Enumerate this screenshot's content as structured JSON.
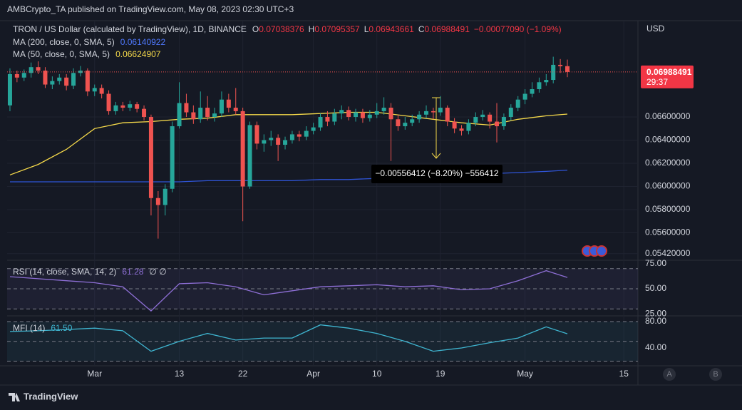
{
  "header": {
    "publisher": "AMBCrypto_TA published on TradingView.com, May 08, 2023 02:30 UTC+3"
  },
  "chart_data": [
    {
      "type": "candlestick",
      "title": "TRON / US Dollar (calculated by TradingView), 1D, BINANCE",
      "ohlc_labels": [
        "O",
        "H",
        "L",
        "C"
      ],
      "change": "−0.00077090 (−1.09%)",
      "currency": "USD",
      "countdown": "29:37",
      "annotation": "−0.00556412 (−8.20%) −556412",
      "up_color": "#26a69a",
      "down_color": "#ef5350",
      "candles": [
        [
          0.067,
          0.0702,
          0.0665,
          0.0697
        ],
        [
          0.0697,
          0.07,
          0.069,
          0.0694
        ],
        [
          0.0694,
          0.0701,
          0.0691,
          0.0698
        ],
        [
          0.0698,
          0.0707,
          0.0694,
          0.0703
        ],
        [
          0.0703,
          0.0708,
          0.0697,
          0.07
        ],
        [
          0.07,
          0.0703,
          0.0685,
          0.0688
        ],
        [
          0.0688,
          0.0695,
          0.0684,
          0.0691
        ],
        [
          0.0691,
          0.0697,
          0.0688,
          0.0694
        ],
        [
          0.0694,
          0.0697,
          0.0683,
          0.0687
        ],
        [
          0.0687,
          0.0702,
          0.0684,
          0.0698
        ],
        [
          0.0698,
          0.0704,
          0.0695,
          0.07
        ],
        [
          0.07,
          0.0702,
          0.0678,
          0.0682
        ],
        [
          0.0682,
          0.0688,
          0.0678,
          0.0685
        ],
        [
          0.0685,
          0.0688,
          0.0676,
          0.068
        ],
        [
          0.068,
          0.0683,
          0.0662,
          0.0665
        ],
        [
          0.0665,
          0.0673,
          0.0662,
          0.067
        ],
        [
          0.067,
          0.0673,
          0.0665,
          0.0668
        ],
        [
          0.0668,
          0.0674,
          0.0665,
          0.0671
        ],
        [
          0.0671,
          0.0673,
          0.0664,
          0.0667
        ],
        [
          0.0667,
          0.067,
          0.0657,
          0.066
        ],
        [
          0.066,
          0.0662,
          0.0575,
          0.059
        ],
        [
          0.059,
          0.0596,
          0.0555,
          0.0584
        ],
        [
          0.0584,
          0.0602,
          0.0575,
          0.0598
        ],
        [
          0.0598,
          0.0656,
          0.0595,
          0.0652
        ],
        [
          0.0652,
          0.069,
          0.065,
          0.0672
        ],
        [
          0.0672,
          0.068,
          0.066,
          0.0664
        ],
        [
          0.0664,
          0.067,
          0.0654,
          0.0658
        ],
        [
          0.0658,
          0.0682,
          0.0655,
          0.0668
        ],
        [
          0.0668,
          0.0678,
          0.0657,
          0.066
        ],
        [
          0.066,
          0.0668,
          0.0656,
          0.0663
        ],
        [
          0.0663,
          0.0682,
          0.066,
          0.0675
        ],
        [
          0.0675,
          0.068,
          0.0664,
          0.0668
        ],
        [
          0.0668,
          0.0685,
          0.0662,
          0.0665
        ],
        [
          0.0665,
          0.0668,
          0.057,
          0.06
        ],
        [
          0.06,
          0.0656,
          0.0598,
          0.0653
        ],
        [
          0.0653,
          0.0656,
          0.0632,
          0.0637
        ],
        [
          0.0637,
          0.0645,
          0.063,
          0.064
        ],
        [
          0.064,
          0.0648,
          0.0635,
          0.0642
        ],
        [
          0.0642,
          0.0645,
          0.0622,
          0.0636
        ],
        [
          0.0636,
          0.0643,
          0.0632,
          0.064
        ],
        [
          0.064,
          0.0648,
          0.0637,
          0.0645
        ],
        [
          0.0645,
          0.0648,
          0.0639,
          0.0643
        ],
        [
          0.0643,
          0.0652,
          0.064,
          0.0648
        ],
        [
          0.0648,
          0.0655,
          0.0645,
          0.0651
        ],
        [
          0.0651,
          0.0663,
          0.0648,
          0.066
        ],
        [
          0.066,
          0.0665,
          0.0652,
          0.0656
        ],
        [
          0.0656,
          0.0667,
          0.0653,
          0.0663
        ],
        [
          0.0663,
          0.067,
          0.0658,
          0.0666
        ],
        [
          0.0666,
          0.0669,
          0.0657,
          0.066
        ],
        [
          0.066,
          0.0667,
          0.0656,
          0.0664
        ],
        [
          0.0664,
          0.0667,
          0.0655,
          0.0659
        ],
        [
          0.0659,
          0.0666,
          0.0656,
          0.0662
        ],
        [
          0.0662,
          0.0672,
          0.0659,
          0.0665
        ],
        [
          0.0665,
          0.0677,
          0.0662,
          0.0668
        ],
        [
          0.0668,
          0.0672,
          0.0622,
          0.0658
        ],
        [
          0.0658,
          0.0662,
          0.0648,
          0.0652
        ],
        [
          0.0652,
          0.066,
          0.0649,
          0.0655
        ],
        [
          0.0655,
          0.0662,
          0.0652,
          0.0658
        ],
        [
          0.0658,
          0.0665,
          0.0655,
          0.0662
        ],
        [
          0.0662,
          0.067,
          0.0659,
          0.0665
        ],
        [
          0.0665,
          0.0668,
          0.0658,
          0.0664
        ],
        [
          0.0664,
          0.0678,
          0.0661,
          0.0668
        ],
        [
          0.0668,
          0.067,
          0.0652,
          0.0656
        ],
        [
          0.0656,
          0.0659,
          0.0646,
          0.065
        ],
        [
          0.065,
          0.0653,
          0.0644,
          0.0648
        ],
        [
          0.0648,
          0.0658,
          0.0645,
          0.0655
        ],
        [
          0.0655,
          0.0664,
          0.0652,
          0.066
        ],
        [
          0.066,
          0.0666,
          0.0657,
          0.0662
        ],
        [
          0.0662,
          0.0664,
          0.065,
          0.0656
        ],
        [
          0.0656,
          0.0672,
          0.0638,
          0.0652
        ],
        [
          0.0652,
          0.0663,
          0.0649,
          0.066
        ],
        [
          0.066,
          0.0671,
          0.0657,
          0.0668
        ],
        [
          0.0668,
          0.0678,
          0.0665,
          0.0675
        ],
        [
          0.0675,
          0.0684,
          0.0671,
          0.068
        ],
        [
          0.068,
          0.069,
          0.0677,
          0.0684
        ],
        [
          0.0684,
          0.0694,
          0.0681,
          0.069
        ],
        [
          0.069,
          0.0697,
          0.0687,
          0.0692
        ],
        [
          0.0692,
          0.0712,
          0.0689,
          0.0705
        ],
        [
          0.0705,
          0.071,
          0.0698,
          0.07038376
        ],
        [
          0.07038376,
          0.07095357,
          0.06943661,
          0.06988491
        ]
      ],
      "series": [
        {
          "name": "MA (200, close, 0, SMA, 5)",
          "color": "#2f54d6",
          "x": [
            0,
            4,
            8,
            12,
            16,
            20,
            24,
            28,
            32,
            36,
            40,
            44,
            48,
            52,
            56,
            60,
            64,
            68,
            72,
            76,
            79
          ],
          "values": [
            0.0604,
            0.0604,
            0.0604,
            0.0604,
            0.0604,
            0.0604,
            0.0604,
            0.0605,
            0.0605,
            0.0605,
            0.0605,
            0.0606,
            0.0606,
            0.0607,
            0.0608,
            0.0609,
            0.061,
            0.0611,
            0.0612,
            0.0613,
            0.06140922
          ]
        },
        {
          "name": "MA (50, close, 0, SMA, 5)",
          "color": "#f5d94a",
          "x": [
            0,
            4,
            8,
            12,
            16,
            20,
            24,
            28,
            32,
            36,
            40,
            44,
            48,
            52,
            56,
            60,
            64,
            68,
            72,
            76,
            79
          ],
          "values": [
            0.061,
            0.0619,
            0.0632,
            0.065,
            0.0655,
            0.0656,
            0.0658,
            0.0659,
            0.0662,
            0.0662,
            0.0662,
            0.0663,
            0.0664,
            0.0664,
            0.0661,
            0.0658,
            0.0655,
            0.0653,
            0.0658,
            0.0661,
            0.06624907
          ]
        }
      ],
      "xlim": [
        -0.4,
        89
      ],
      "ylim": [
        0.05363,
        0.07425
      ],
      "yticks": [
        {
          "value": 0.066,
          "label": "0.06600000"
        },
        {
          "value": 0.064,
          "label": "0.06400000"
        },
        {
          "value": 0.062,
          "label": "0.06200000"
        },
        {
          "value": 0.06,
          "label": "0.06000000"
        },
        {
          "value": 0.058,
          "label": "0.05800000"
        },
        {
          "value": 0.056,
          "label": "0.05600000"
        },
        {
          "value": 0.0542,
          "label": "0.05420000"
        }
      ],
      "xticks": [
        {
          "value": 12,
          "label": "Mar"
        },
        {
          "value": 24,
          "label": "13"
        },
        {
          "value": 33,
          "label": "22"
        },
        {
          "value": 43,
          "label": "Apr"
        },
        {
          "value": 52,
          "label": "10"
        },
        {
          "value": 61,
          "label": "19"
        },
        {
          "value": 73,
          "label": "May"
        },
        {
          "value": 87,
          "label": "15"
        }
      ],
      "grid": true
    },
    {
      "type": "line",
      "extra": "∅ ∅",
      "series": [
        {
          "name": "RSI (14, close, SMA, 14, 2)",
          "color": "#8e6fd6",
          "x": [
            0,
            4,
            8,
            12,
            16,
            20,
            24,
            28,
            32,
            36,
            40,
            44,
            48,
            52,
            56,
            60,
            64,
            68,
            72,
            76,
            79
          ],
          "values": [
            62,
            60,
            58,
            56,
            52,
            28,
            55,
            56,
            52,
            44,
            48,
            52,
            53,
            54,
            52,
            53,
            49,
            50,
            58,
            68,
            61.28
          ]
        }
      ],
      "ylim": [
        23.8,
        77.6
      ],
      "yticks": [
        {
          "value": 75,
          "label": "75.00"
        },
        {
          "value": 50,
          "label": "50.00"
        },
        {
          "value": 25,
          "label": "25.00"
        }
      ],
      "levels": [
        70,
        50,
        30
      ]
    },
    {
      "type": "line",
      "series": [
        {
          "name": "MFI (14)",
          "color": "#3fb5d0",
          "x": [
            0,
            4,
            8,
            12,
            16,
            20,
            24,
            28,
            32,
            36,
            40,
            44,
            48,
            52,
            56,
            60,
            64,
            68,
            72,
            76,
            79
          ],
          "values": [
            65,
            66,
            68,
            70,
            66,
            35,
            50,
            62,
            52,
            55,
            55,
            75,
            70,
            62,
            50,
            35,
            40,
            48,
            55,
            72,
            61.5
          ]
        }
      ],
      "value_label": "61.50",
      "ylim": [
        14,
        86.5
      ],
      "yticks": [
        {
          "value": 80,
          "label": "80.00"
        },
        {
          "value": 40,
          "label": "40.00"
        }
      ],
      "levels": [
        80,
        50,
        20
      ]
    }
  ],
  "footer": {
    "brand": "TradingView",
    "buttons": [
      "A",
      "B"
    ]
  }
}
